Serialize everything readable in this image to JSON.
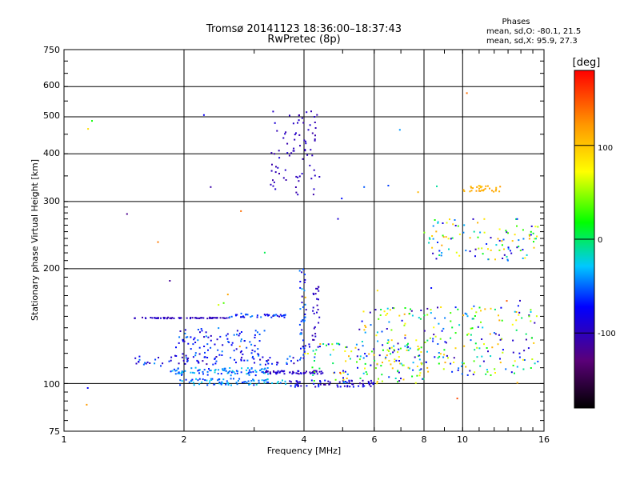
{
  "chart_data": {
    "type": "scatter",
    "title": "Tromsø 20141123 18:36:00–18:37:43",
    "subtitle": "RwPretec (8p)",
    "xlabel": "Frequency [MHz]",
    "ylabel": "Stationary phase Virtual Height [km]",
    "x_scale": "log",
    "y_scale": "log",
    "xlim": [
      1,
      16
    ],
    "ylim": [
      75,
      750
    ],
    "x_ticks": [
      "1",
      "2",
      "4",
      "6",
      "8",
      "10",
      "16"
    ],
    "y_ticks": [
      "75",
      "100",
      "200",
      "300",
      "400",
      "500",
      "600",
      "750"
    ],
    "grid": true,
    "stats": {
      "heading": "Phases",
      "line_o": "mean, sd,O: -80.1, 21.5",
      "line_x": "mean, sd,X:  95.9, 27.3"
    },
    "colorbar": {
      "label": "[deg]",
      "ticks": [
        "100",
        "0",
        "-100"
      ],
      "range": [
        -180,
        180
      ]
    },
    "traces": [
      {
        "name": "",
        "x_range": [
          1.5,
          2.6
        ],
        "y_range": [
          148,
          149
        ],
        "count": 70,
        "phase": [
          -110,
          -90
        ]
      },
      {
        "name": "",
        "x_range": [
          2.6,
          3.6
        ],
        "y_range": [
          149,
          152
        ],
        "count": 40,
        "phase": [
          -100,
          -40
        ]
      },
      {
        "name": "",
        "x_range": [
          1.5,
          4.0
        ],
        "y_range": [
          112,
          118
        ],
        "count": 80,
        "phase": [
          -110,
          -40
        ]
      },
      {
        "name": "",
        "x_range": [
          1.9,
          3.2
        ],
        "y_range": [
          118,
          140
        ],
        "count": 90,
        "phase": [
          -100,
          -40
        ]
      },
      {
        "name": "",
        "x_range": [
          1.85,
          3.3
        ],
        "y_range": [
          105,
          110
        ],
        "count": 90,
        "phase": [
          -70,
          -20
        ]
      },
      {
        "name": "",
        "x_range": [
          3.2,
          4.5
        ],
        "y_range": [
          106,
          108
        ],
        "count": 60,
        "phase": [
          -110,
          -80
        ]
      },
      {
        "name": "",
        "x_range": [
          1.95,
          3.6
        ],
        "y_range": [
          99,
          103
        ],
        "count": 80,
        "phase": [
          -70,
          -20
        ]
      },
      {
        "name": "",
        "x_range": [
          3.6,
          6.0
        ],
        "y_range": [
          98,
          102
        ],
        "count": 70,
        "phase": [
          -110,
          -60
        ]
      },
      {
        "name": "",
        "x_range": [
          3.3,
          4.4
        ],
        "y_range": [
          310,
          520
        ],
        "count": 80,
        "phase": [
          -110,
          -90
        ]
      },
      {
        "name": "",
        "x_range": [
          3.9,
          4.05
        ],
        "y_range": [
          118,
          200
        ],
        "count": 40,
        "phase": [
          -100,
          -30
        ]
      },
      {
        "name": "",
        "x_range": [
          4.2,
          4.4
        ],
        "y_range": [
          130,
          180
        ],
        "count": 25,
        "phase": [
          -110,
          -90
        ]
      },
      {
        "name": "",
        "x_range": [
          4.0,
          8.0
        ],
        "y_range": [
          100,
          128
        ],
        "count": 120,
        "phase": [
          -110,
          110
        ]
      },
      {
        "name": "",
        "x_range": [
          5.5,
          15.5
        ],
        "y_range": [
          105,
          160
        ],
        "count": 250,
        "phase": [
          -110,
          115
        ]
      },
      {
        "name": "",
        "x_range": [
          8.0,
          15.5
        ],
        "y_range": [
          210,
          270
        ],
        "count": 110,
        "phase": [
          -110,
          115
        ]
      },
      {
        "name": "",
        "x_range": [
          10.0,
          12.5
        ],
        "y_range": [
          318,
          330
        ],
        "count": 30,
        "phase": [
          100,
          120
        ]
      },
      {
        "name": "",
        "x_range": [
          1.0,
          16.0
        ],
        "y_range": [
          75,
          640
        ],
        "count": 40,
        "phase": [
          -120,
          160
        ]
      }
    ]
  }
}
